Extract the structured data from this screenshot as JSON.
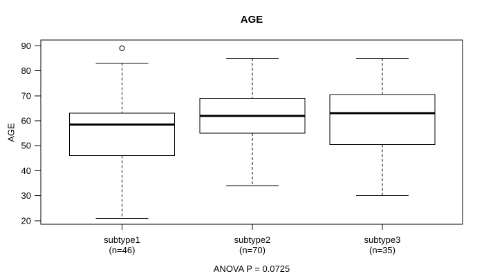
{
  "chart_data": {
    "type": "boxplot",
    "title": "AGE",
    "ylabel": "AGE",
    "xlabel": "",
    "annotation": "ANOVA P = 0.0725",
    "ylim": [
      18.6,
      92.3
    ],
    "yticks": [
      20,
      30,
      40,
      50,
      60,
      70,
      80,
      90
    ],
    "grid": false,
    "line_color": "#000000",
    "background_color": "#ffffff",
    "groups": [
      {
        "label": "subtype1",
        "n_label": "(n=46)",
        "n": 46,
        "whisker_low": 21,
        "q1": 46,
        "median": 58.5,
        "q3": 63,
        "whisker_high": 83,
        "outliers": [
          89
        ]
      },
      {
        "label": "subtype2",
        "n_label": "(n=70)",
        "n": 70,
        "whisker_low": 34,
        "q1": 55,
        "median": 62,
        "q3": 69,
        "whisker_high": 85,
        "outliers": []
      },
      {
        "label": "subtype3",
        "n_label": "(n=35)",
        "n": 35,
        "whisker_low": 30,
        "q1": 50.5,
        "median": 63,
        "q3": 70.5,
        "whisker_high": 85,
        "outliers": []
      }
    ],
    "layout": {
      "centers_frac": [
        0.1926,
        0.5016,
        0.8098
      ],
      "box_width_frac": 0.2492,
      "cap_width_frac": 0.1246,
      "whisker_style": "dashed",
      "legend": "none"
    }
  }
}
